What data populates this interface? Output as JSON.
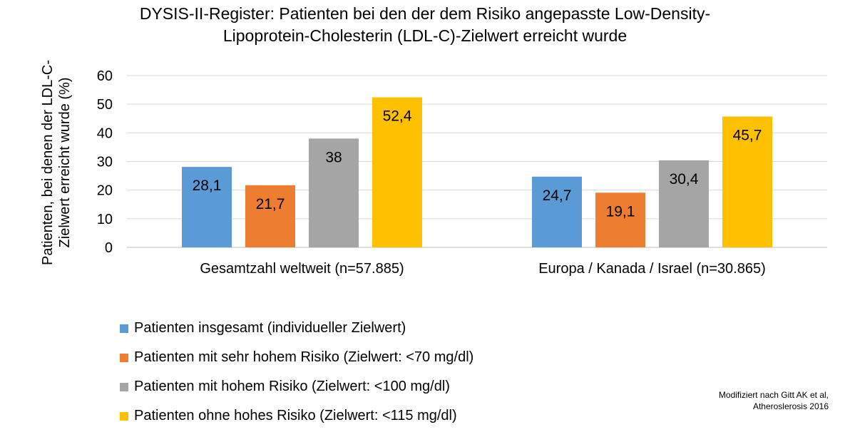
{
  "chart_data": {
    "type": "bar",
    "title_lines": [
      "DYSIS-II-Register: Patienten bei den der dem Risiko angepasste Low-Density-",
      "Lipoprotein-Cholesterin (LDL-C)-Zielwert erreicht wurde"
    ],
    "ylabel_lines": [
      "Patienten, bei denen der LDL-C-",
      "Zielwert erreicht wurde (%)"
    ],
    "xlabel": "",
    "ylim": [
      0,
      60
    ],
    "yticks": [
      0,
      10,
      20,
      30,
      40,
      50,
      60
    ],
    "grid": true,
    "legend_position": "bottom-left",
    "categories": [
      "Gesamtzahl weltweit (n=57.885)",
      "Europa / Kanada / Israel (n=30.865)"
    ],
    "series": [
      {
        "name": "Patienten insgesamt (individueller Zielwert)",
        "color": "#5b9bd5",
        "values": [
          28.1,
          24.7
        ],
        "labels": [
          "28,1",
          "24,7"
        ]
      },
      {
        "name": "Patienten mit sehr hohem Risiko (Zielwert: <70 mg/dl)",
        "color": "#ed7d31",
        "values": [
          21.7,
          19.1
        ],
        "labels": [
          "21,7",
          "19,1"
        ]
      },
      {
        "name": "Patienten mit hohem Risiko (Zielwert: <100 mg/dl)",
        "color": "#a5a5a5",
        "values": [
          38,
          30.4
        ],
        "labels": [
          "38",
          "30,4"
        ]
      },
      {
        "name": "Patienten ohne hohes Risiko (Zielwert: <115 mg/dl)",
        "color": "#ffc000",
        "values": [
          52.4,
          45.7
        ],
        "labels": [
          "52,4",
          "45,7"
        ]
      }
    ]
  },
  "source_note": {
    "line1": "Modifiziert nach Gitt AK et al,",
    "line2": "Atheroslerosis 2016"
  }
}
